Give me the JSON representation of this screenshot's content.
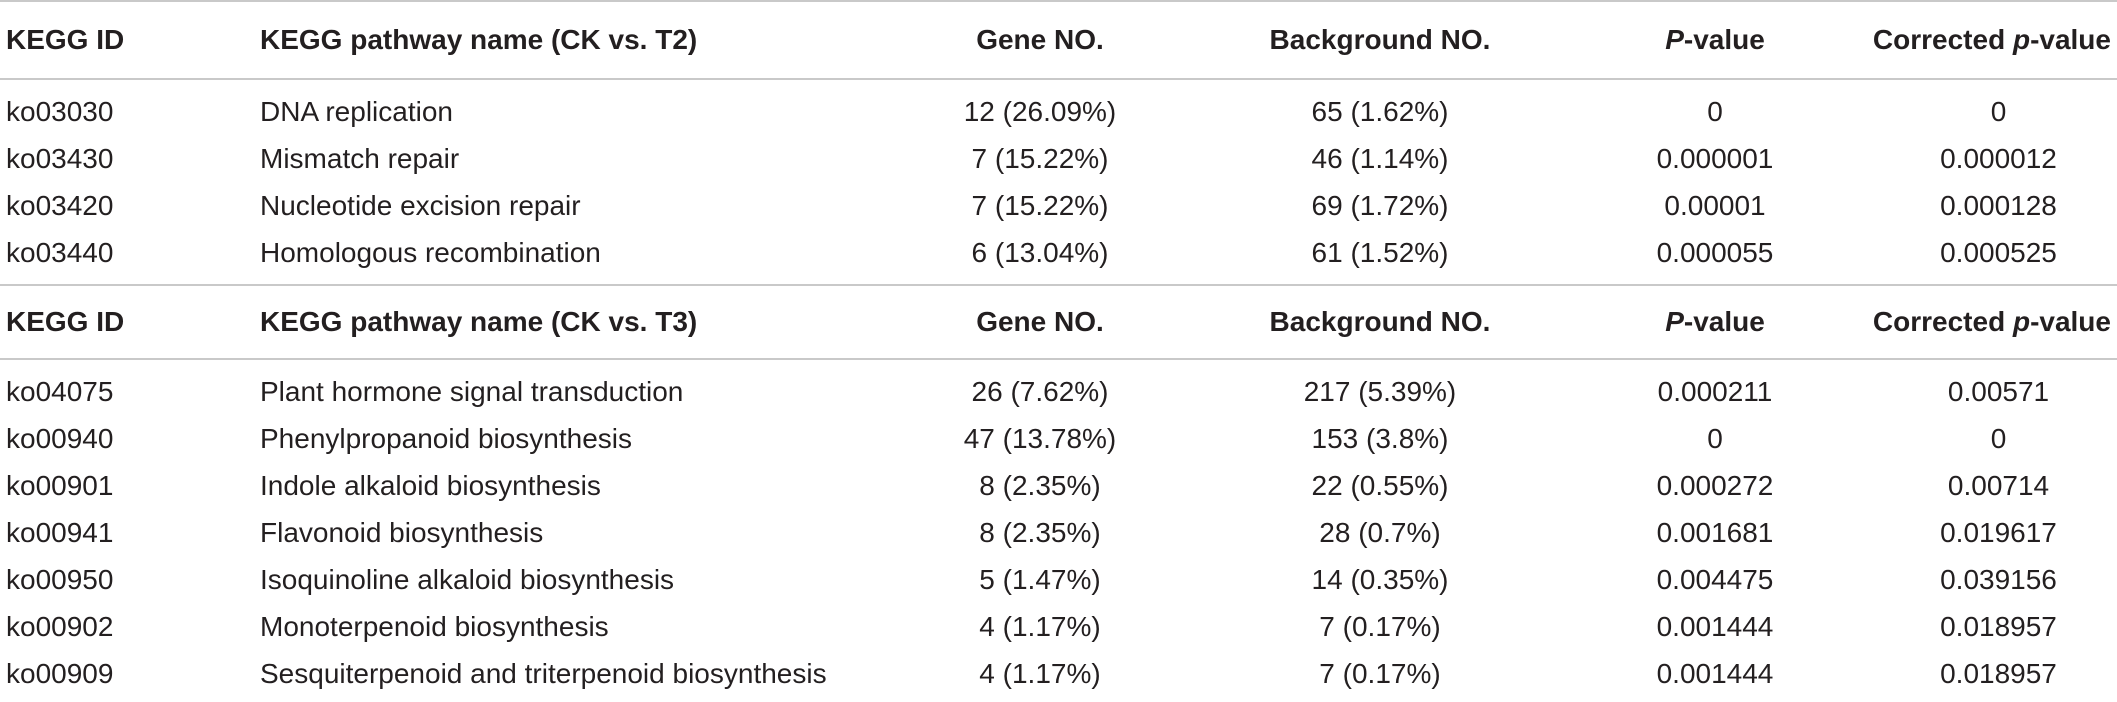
{
  "sections": [
    {
      "headers": {
        "id": "KEGG ID",
        "name": "KEGG pathway name (CK vs. T2)",
        "gene": "Gene NO.",
        "background": "Background NO.",
        "p_italic": "P",
        "p_rest": "-value",
        "cp_prefix": "Corrected ",
        "cp_italic": "p",
        "cp_rest": "-value"
      },
      "rows": [
        {
          "id": "ko03030",
          "name": "DNA replication",
          "gene": "12 (26.09%)",
          "background": "65 (1.62%)",
          "p": "0",
          "cp": "0"
        },
        {
          "id": "ko03430",
          "name": "Mismatch repair",
          "gene": "7 (15.22%)",
          "background": "46 (1.14%)",
          "p": "0.000001",
          "cp": "0.000012"
        },
        {
          "id": "ko03420",
          "name": "Nucleotide excision repair",
          "gene": "7 (15.22%)",
          "background": "69 (1.72%)",
          "p": "0.00001",
          "cp": "0.000128"
        },
        {
          "id": "ko03440",
          "name": "Homologous recombination",
          "gene": "6 (13.04%)",
          "background": "61 (1.52%)",
          "p": "0.000055",
          "cp": "0.000525"
        }
      ]
    },
    {
      "headers": {
        "id": "KEGG ID",
        "name": "KEGG pathway name (CK vs. T3)",
        "gene": "Gene NO.",
        "background": "Background NO.",
        "p_italic": "P",
        "p_rest": "-value",
        "cp_prefix": "Corrected ",
        "cp_italic": "p",
        "cp_rest": "-value"
      },
      "rows": [
        {
          "id": "ko04075",
          "name": "Plant hormone signal transduction",
          "gene": "26 (7.62%)",
          "background": "217 (5.39%)",
          "p": "0.000211",
          "cp": "0.00571"
        },
        {
          "id": "ko00940",
          "name": "Phenylpropanoid biosynthesis",
          "gene": "47 (13.78%)",
          "background": "153 (3.8%)",
          "p": "0",
          "cp": "0"
        },
        {
          "id": "ko00901",
          "name": "Indole alkaloid biosynthesis",
          "gene": "8 (2.35%)",
          "background": "22 (0.55%)",
          "p": "0.000272",
          "cp": "0.00714"
        },
        {
          "id": "ko00941",
          "name": "Flavonoid biosynthesis",
          "gene": "8 (2.35%)",
          "background": "28 (0.7%)",
          "p": "0.001681",
          "cp": "0.019617"
        },
        {
          "id": "ko00950",
          "name": "Isoquinoline alkaloid biosynthesis",
          "gene": "5 (1.47%)",
          "background": "14 (0.35%)",
          "p": "0.004475",
          "cp": "0.039156"
        },
        {
          "id": "ko00902",
          "name": "Monoterpenoid biosynthesis",
          "gene": "4 (1.17%)",
          "background": "7 (0.17%)",
          "p": "0.001444",
          "cp": "0.018957"
        },
        {
          "id": "ko00909",
          "name": "Sesquiterpenoid and triterpenoid biosynthesis",
          "gene": "4 (1.17%)",
          "background": "7 (0.17%)",
          "p": "0.001444",
          "cp": "0.018957"
        }
      ]
    }
  ]
}
